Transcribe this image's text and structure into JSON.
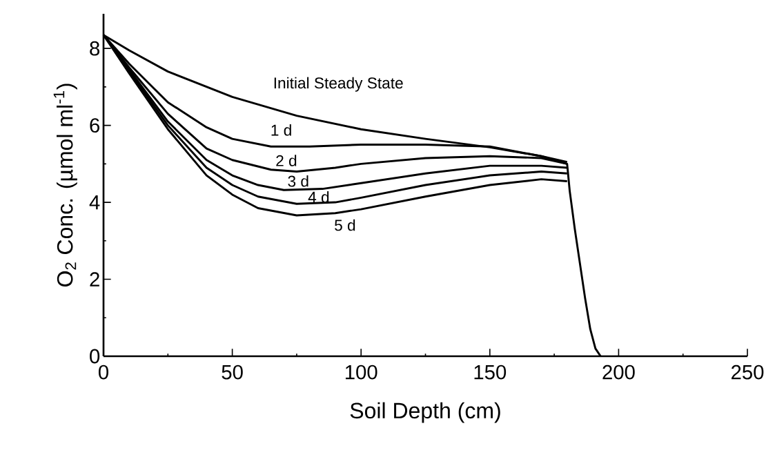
{
  "chart_data": {
    "type": "line",
    "xlabel": "Soil Depth (cm)",
    "ylabel": "O$_{2}$ Conc. (µmol ml$^{-1}$)",
    "xlim": [
      0,
      250
    ],
    "ylim": [
      0,
      8.9
    ],
    "xticks": [
      0,
      50,
      100,
      150,
      200,
      250
    ],
    "yticks": [
      0,
      2,
      4,
      6,
      8
    ],
    "marker": "none",
    "line_style": "solid",
    "series": [
      {
        "name": "Initial Steady State",
        "color": "#000000",
        "x": [
          0,
          10,
          25,
          50,
          75,
          100,
          125,
          150,
          170,
          180,
          181,
          183,
          185,
          187,
          189,
          191,
          193
        ],
        "values": [
          8.35,
          7.95,
          7.4,
          6.74,
          6.25,
          5.9,
          5.65,
          5.43,
          5.2,
          5.0,
          4.3,
          3.3,
          2.4,
          1.5,
          0.7,
          0.2,
          0
        ]
      },
      {
        "name": "1 d",
        "color": "#000000",
        "x": [
          0,
          10,
          25,
          40,
          50,
          65,
          80,
          100,
          125,
          150,
          170,
          180
        ],
        "values": [
          8.35,
          7.6,
          6.6,
          5.95,
          5.65,
          5.45,
          5.45,
          5.5,
          5.5,
          5.45,
          5.2,
          5.05
        ]
      },
      {
        "name": "2 d",
        "color": "#000000",
        "x": [
          0,
          10,
          25,
          40,
          50,
          65,
          75,
          90,
          100,
          125,
          150,
          170,
          180
        ],
        "values": [
          8.35,
          7.5,
          6.3,
          5.4,
          5.1,
          4.85,
          4.8,
          4.9,
          5.0,
          5.15,
          5.2,
          5.15,
          5.0
        ]
      },
      {
        "name": "3 d",
        "color": "#000000",
        "x": [
          0,
          10,
          25,
          40,
          50,
          60,
          70,
          85,
          100,
          125,
          150,
          170,
          180
        ],
        "values": [
          8.35,
          7.45,
          6.1,
          5.1,
          4.7,
          4.45,
          4.32,
          4.35,
          4.5,
          4.75,
          4.95,
          4.95,
          4.9
        ]
      },
      {
        "name": "4 d",
        "color": "#000000",
        "x": [
          0,
          10,
          25,
          40,
          50,
          60,
          75,
          90,
          100,
          125,
          150,
          170,
          180
        ],
        "values": [
          8.35,
          7.4,
          6.0,
          4.9,
          4.45,
          4.15,
          3.96,
          4.0,
          4.12,
          4.45,
          4.7,
          4.8,
          4.75
        ]
      },
      {
        "name": "5 d",
        "color": "#000000",
        "x": [
          0,
          10,
          25,
          40,
          50,
          60,
          75,
          90,
          100,
          125,
          150,
          170,
          180
        ],
        "values": [
          8.35,
          7.35,
          5.9,
          4.7,
          4.2,
          3.85,
          3.66,
          3.72,
          3.82,
          4.15,
          4.45,
          4.6,
          4.55
        ]
      }
    ]
  }
}
